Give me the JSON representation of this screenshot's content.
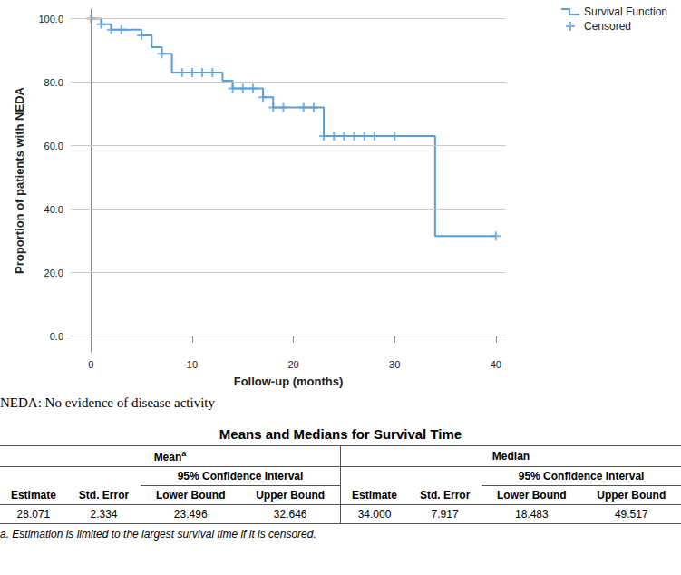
{
  "chart_data": {
    "type": "line",
    "y_label": "Proportion of patients with NEDA",
    "x_label": "Follow-up (months)",
    "xlim": [
      -2,
      41
    ],
    "xticks": [
      0,
      10,
      20,
      30,
      40
    ],
    "ylim": [
      -5,
      103
    ],
    "yticks": [
      {
        "value": 0,
        "label": "0.0"
      },
      {
        "value": 20,
        "label": "20.0"
      },
      {
        "value": 40,
        "label": "40.0"
      },
      {
        "value": 60,
        "label": "60.0"
      },
      {
        "value": 80,
        "label": "80.0"
      },
      {
        "value": 100,
        "label": "100.0"
      }
    ],
    "grid": "y",
    "legend": "top-right",
    "series": [
      {
        "name": "Survival Function",
        "type": "line",
        "line_style": "step",
        "color": "#5a9fd9",
        "x": [
          0,
          1,
          2,
          5,
          6,
          7,
          8,
          13,
          14,
          17,
          18,
          23,
          34,
          40
        ],
        "values": [
          100,
          98.2,
          96.5,
          94.7,
          91,
          88.9,
          83,
          80.4,
          78,
          75.2,
          72,
          63,
          31.5,
          31.5
        ]
      },
      {
        "name": "Censored",
        "type": "scatter",
        "marker": "plus",
        "color": "#5a9fd9",
        "x": [
          0,
          1,
          2,
          3,
          5,
          7,
          9,
          10,
          11,
          12,
          14,
          15,
          16,
          17,
          18,
          19,
          21,
          22,
          23,
          24,
          25,
          26,
          27,
          28,
          30,
          40
        ],
        "values": [
          100,
          98.2,
          96.5,
          96.5,
          94.7,
          88.9,
          83,
          83,
          83,
          83,
          78,
          78,
          78,
          75.2,
          72,
          72,
          72,
          72,
          63,
          63,
          63,
          63,
          63,
          63,
          63,
          31.5
        ]
      }
    ]
  },
  "note": "NEDA: No evidence of disease activity",
  "table": {
    "title": "Means and Medians for Survival Time",
    "groups": [
      {
        "label": "Mean",
        "mark": "a"
      },
      {
        "label": "Median"
      }
    ],
    "ci_label": "95% Confidence Interval",
    "columns": [
      "Estimate",
      "Std. Error",
      "Lower Bound",
      "Upper Bound",
      "Estimate",
      "Std. Error",
      "Lower Bound",
      "Upper Bound"
    ],
    "rows": [
      [
        "28.071",
        "2.334",
        "23.496",
        "32.646",
        "34.000",
        "7.917",
        "18.483",
        "49.517"
      ]
    ],
    "footnote": "a. Estimation is limited to the largest survival time if it is censored."
  }
}
